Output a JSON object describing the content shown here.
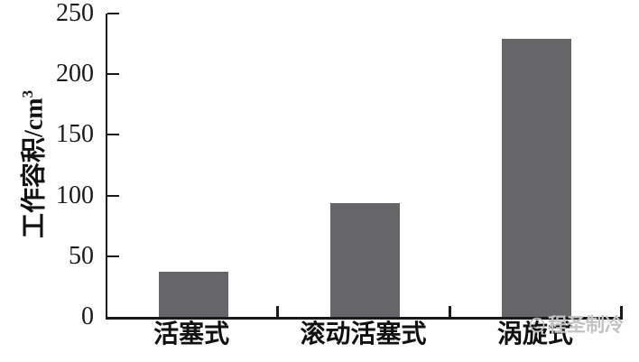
{
  "chart_data": {
    "type": "bar",
    "title": "",
    "categories": [
      "活塞式",
      "滚动活塞式",
      "涡旋式"
    ],
    "values": [
      37,
      94,
      229
    ],
    "xlabel": "",
    "ylabel": "工作容积/cm³",
    "ylabel_base": "工作容积/cm",
    "ylabel_exponent": "3",
    "yticks": [
      0,
      50,
      100,
      150,
      200,
      250
    ],
    "ylim": [
      0,
      250
    ],
    "grid": false,
    "legend_position": "none",
    "bar_color": "#666568",
    "axis_color": "#1a1a1a"
  },
  "watermark": {
    "text": "程圣制冷",
    "icon": "smiley-logo-icon",
    "color": "#c3c3c3"
  }
}
